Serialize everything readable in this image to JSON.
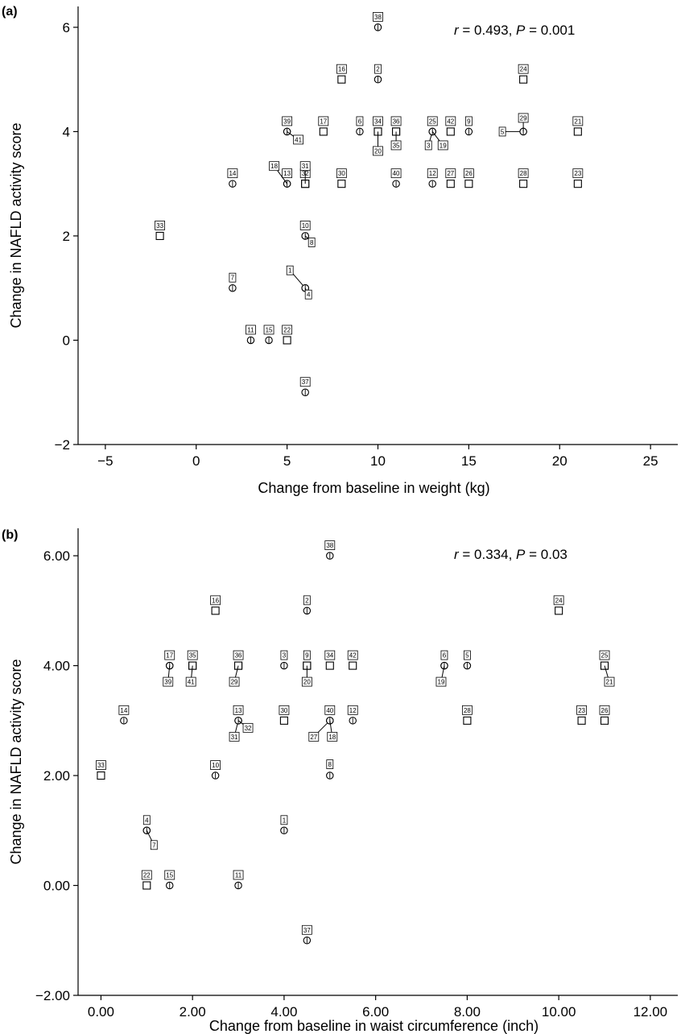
{
  "chart_data": [
    {
      "type": "scatter",
      "panel": "(a)",
      "annotation": {
        "r_symbol": "r",
        "r_text": " = 0.493, ",
        "p_symbol": "P",
        "p_text": " = 0.001"
      },
      "xlabel": "Change from baseline in weight (kg)",
      "ylabel": "Change in NAFLD activity score",
      "xlim": [
        -6.5,
        26.5
      ],
      "ylim": [
        -2,
        6.4
      ],
      "xticks": [
        -5,
        0,
        5,
        10,
        15,
        20,
        25
      ],
      "xtick_labels": [
        "−5",
        "0",
        "5",
        "10",
        "15",
        "20",
        "25"
      ],
      "yticks": [
        -2,
        0,
        2,
        4,
        6
      ],
      "ytick_labels": [
        "−2",
        "0",
        "2",
        "4",
        "6"
      ],
      "grid": false,
      "points": [
        {
          "id": "38",
          "x": 10,
          "y": 6,
          "marker": "circle"
        },
        {
          "id": "16",
          "x": 8,
          "y": 5,
          "marker": "square"
        },
        {
          "id": "2",
          "x": 10,
          "y": 5,
          "marker": "circle"
        },
        {
          "id": "24",
          "x": 18,
          "y": 5,
          "marker": "square"
        },
        {
          "id": "39",
          "x": 5,
          "y": 4,
          "marker": "circle"
        },
        {
          "id": "41",
          "x": 5,
          "y": 4,
          "marker": "circle"
        },
        {
          "id": "17",
          "x": 7,
          "y": 4,
          "marker": "square"
        },
        {
          "id": "6",
          "x": 9,
          "y": 4,
          "marker": "circle"
        },
        {
          "id": "34",
          "x": 10,
          "y": 4,
          "marker": "square"
        },
        {
          "id": "20",
          "x": 10,
          "y": 4,
          "marker": "square"
        },
        {
          "id": "36",
          "x": 11,
          "y": 4,
          "marker": "square"
        },
        {
          "id": "35",
          "x": 11,
          "y": 4,
          "marker": "square"
        },
        {
          "id": "25",
          "x": 13,
          "y": 4,
          "marker": "circle"
        },
        {
          "id": "3",
          "x": 13,
          "y": 4,
          "marker": "circle"
        },
        {
          "id": "19",
          "x": 13,
          "y": 4,
          "marker": "circle"
        },
        {
          "id": "42",
          "x": 14,
          "y": 4,
          "marker": "square"
        },
        {
          "id": "9",
          "x": 15,
          "y": 4,
          "marker": "circle"
        },
        {
          "id": "5",
          "x": 18,
          "y": 4,
          "marker": "circle"
        },
        {
          "id": "29",
          "x": 18,
          "y": 4,
          "marker": "circle"
        },
        {
          "id": "21",
          "x": 21,
          "y": 4,
          "marker": "square"
        },
        {
          "id": "14",
          "x": 2,
          "y": 3,
          "marker": "circle"
        },
        {
          "id": "13",
          "x": 5,
          "y": 3,
          "marker": "circle"
        },
        {
          "id": "18",
          "x": 5,
          "y": 3,
          "marker": "circle"
        },
        {
          "id": "32",
          "x": 6,
          "y": 3,
          "marker": "square"
        },
        {
          "id": "31",
          "x": 6,
          "y": 3,
          "marker": "square"
        },
        {
          "id": "30",
          "x": 8,
          "y": 3,
          "marker": "square"
        },
        {
          "id": "40",
          "x": 11,
          "y": 3,
          "marker": "circle"
        },
        {
          "id": "12",
          "x": 13,
          "y": 3,
          "marker": "circle"
        },
        {
          "id": "27",
          "x": 14,
          "y": 3,
          "marker": "square"
        },
        {
          "id": "26",
          "x": 15,
          "y": 3,
          "marker": "square"
        },
        {
          "id": "28",
          "x": 18,
          "y": 3,
          "marker": "square"
        },
        {
          "id": "23",
          "x": 21,
          "y": 3,
          "marker": "square"
        },
        {
          "id": "33",
          "x": -2,
          "y": 2,
          "marker": "square"
        },
        {
          "id": "10",
          "x": 6,
          "y": 2,
          "marker": "circle"
        },
        {
          "id": "8",
          "x": 6,
          "y": 2,
          "marker": "circle"
        },
        {
          "id": "7",
          "x": 2,
          "y": 1,
          "marker": "circle"
        },
        {
          "id": "1",
          "x": 6,
          "y": 1,
          "marker": "circle"
        },
        {
          "id": "4",
          "x": 6,
          "y": 1,
          "marker": "circle"
        },
        {
          "id": "11",
          "x": 3,
          "y": 0,
          "marker": "circle"
        },
        {
          "id": "15",
          "x": 4,
          "y": 0,
          "marker": "circle"
        },
        {
          "id": "22",
          "x": 5,
          "y": 0,
          "marker": "square"
        },
        {
          "id": "37",
          "x": 6,
          "y": -1,
          "marker": "circle"
        }
      ]
    },
    {
      "type": "scatter",
      "panel": "(b)",
      "annotation": {
        "r_symbol": "r",
        "r_text": " = 0.334, ",
        "p_symbol": "P",
        "p_text": " = 0.03"
      },
      "xlabel": "Change from baseline in waist circumference (inch)",
      "ylabel": "Change in NAFLD activity score",
      "xlim": [
        -0.5,
        12.6
      ],
      "ylim": [
        -2,
        6.5
      ],
      "xticks": [
        0,
        2,
        4,
        6,
        8,
        10,
        12
      ],
      "xtick_labels": [
        "0.00",
        "2.00",
        "4.00",
        "6.00",
        "8.00",
        "10.00",
        "12.00"
      ],
      "yticks": [
        -2,
        0,
        2,
        4,
        6
      ],
      "ytick_labels": [
        "−2.00",
        "0.00",
        "2.00",
        "4.00",
        "6.00"
      ],
      "grid": false,
      "points": [
        {
          "id": "38",
          "x": 5,
          "y": 6,
          "marker": "circle"
        },
        {
          "id": "16",
          "x": 2.5,
          "y": 5,
          "marker": "square"
        },
        {
          "id": "2",
          "x": 4.5,
          "y": 5,
          "marker": "circle"
        },
        {
          "id": "24",
          "x": 10,
          "y": 5,
          "marker": "square"
        },
        {
          "id": "17",
          "x": 1.5,
          "y": 4,
          "marker": "circle"
        },
        {
          "id": "39",
          "x": 1.5,
          "y": 4,
          "marker": "circle"
        },
        {
          "id": "35",
          "x": 2,
          "y": 4,
          "marker": "square"
        },
        {
          "id": "41",
          "x": 2,
          "y": 4,
          "marker": "square"
        },
        {
          "id": "36",
          "x": 3,
          "y": 4,
          "marker": "square"
        },
        {
          "id": "29",
          "x": 3,
          "y": 4,
          "marker": "square"
        },
        {
          "id": "3",
          "x": 4,
          "y": 4,
          "marker": "circle"
        },
        {
          "id": "9",
          "x": 4.5,
          "y": 4,
          "marker": "square"
        },
        {
          "id": "20",
          "x": 4.5,
          "y": 4,
          "marker": "square"
        },
        {
          "id": "34",
          "x": 5,
          "y": 4,
          "marker": "square"
        },
        {
          "id": "42",
          "x": 5.5,
          "y": 4,
          "marker": "square"
        },
        {
          "id": "6",
          "x": 7.5,
          "y": 4,
          "marker": "circle"
        },
        {
          "id": "19",
          "x": 7.5,
          "y": 4,
          "marker": "circle"
        },
        {
          "id": "5",
          "x": 8,
          "y": 4,
          "marker": "circle"
        },
        {
          "id": "25",
          "x": 11,
          "y": 4,
          "marker": "square"
        },
        {
          "id": "21",
          "x": 11,
          "y": 4,
          "marker": "square"
        },
        {
          "id": "14",
          "x": 0.5,
          "y": 3,
          "marker": "circle"
        },
        {
          "id": "13",
          "x": 3,
          "y": 3,
          "marker": "circle"
        },
        {
          "id": "31",
          "x": 3,
          "y": 3,
          "marker": "circle"
        },
        {
          "id": "32",
          "x": 3,
          "y": 3,
          "marker": "circle"
        },
        {
          "id": "30",
          "x": 4,
          "y": 3,
          "marker": "square"
        },
        {
          "id": "40",
          "x": 5,
          "y": 3,
          "marker": "circle"
        },
        {
          "id": "27",
          "x": 5,
          "y": 3,
          "marker": "circle"
        },
        {
          "id": "18",
          "x": 5,
          "y": 3,
          "marker": "circle"
        },
        {
          "id": "12",
          "x": 5.5,
          "y": 3,
          "marker": "circle"
        },
        {
          "id": "28",
          "x": 8,
          "y": 3,
          "marker": "square"
        },
        {
          "id": "23",
          "x": 10.5,
          "y": 3,
          "marker": "square"
        },
        {
          "id": "26",
          "x": 11,
          "y": 3,
          "marker": "square"
        },
        {
          "id": "33",
          "x": 0,
          "y": 2,
          "marker": "square"
        },
        {
          "id": "10",
          "x": 2.5,
          "y": 2,
          "marker": "circle"
        },
        {
          "id": "8",
          "x": 5,
          "y": 2,
          "marker": "circle"
        },
        {
          "id": "4",
          "x": 1,
          "y": 1,
          "marker": "circle"
        },
        {
          "id": "7",
          "x": 1,
          "y": 1,
          "marker": "circle"
        },
        {
          "id": "1",
          "x": 4,
          "y": 1,
          "marker": "circle"
        },
        {
          "id": "22",
          "x": 1,
          "y": 0,
          "marker": "square"
        },
        {
          "id": "15",
          "x": 1.5,
          "y": 0,
          "marker": "circle"
        },
        {
          "id": "11",
          "x": 3,
          "y": 0,
          "marker": "circle"
        },
        {
          "id": "37",
          "x": 4.5,
          "y": -1,
          "marker": "circle"
        }
      ]
    }
  ]
}
